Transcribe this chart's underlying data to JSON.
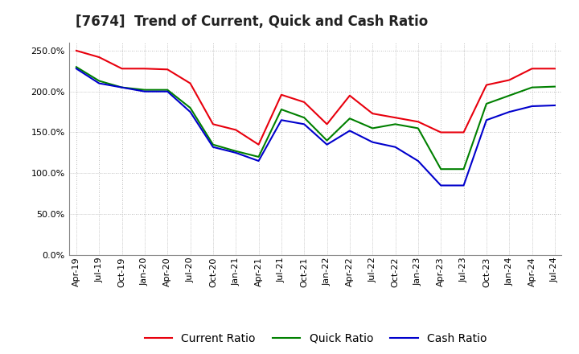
{
  "title": "[7674]  Trend of Current, Quick and Cash Ratio",
  "x_labels": [
    "Apr-19",
    "Jul-19",
    "Oct-19",
    "Jan-20",
    "Apr-20",
    "Jul-20",
    "Oct-20",
    "Jan-21",
    "Apr-21",
    "Jul-21",
    "Oct-21",
    "Jan-22",
    "Apr-22",
    "Jul-22",
    "Oct-22",
    "Jan-23",
    "Apr-23",
    "Jul-23",
    "Oct-23",
    "Jan-24",
    "Apr-24",
    "Jul-24"
  ],
  "current_ratio": [
    2.5,
    2.42,
    2.28,
    2.28,
    2.27,
    2.1,
    1.6,
    1.53,
    1.35,
    1.96,
    1.87,
    1.6,
    1.95,
    1.73,
    1.68,
    1.63,
    1.5,
    1.5,
    2.08,
    2.14,
    2.28,
    2.28
  ],
  "quick_ratio": [
    2.3,
    2.13,
    2.05,
    2.02,
    2.02,
    1.8,
    1.35,
    1.27,
    1.2,
    1.78,
    1.68,
    1.4,
    1.67,
    1.55,
    1.6,
    1.55,
    1.05,
    1.05,
    1.85,
    1.95,
    2.05,
    2.06
  ],
  "cash_ratio": [
    2.28,
    2.1,
    2.05,
    2.0,
    2.0,
    1.75,
    1.32,
    1.25,
    1.15,
    1.65,
    1.6,
    1.35,
    1.52,
    1.38,
    1.32,
    1.15,
    0.85,
    0.85,
    1.65,
    1.75,
    1.82,
    1.83
  ],
  "ylim": [
    0.0,
    2.6
  ],
  "yticks": [
    0.0,
    0.5,
    1.0,
    1.5,
    2.0,
    2.5
  ],
  "current_color": "#e8000d",
  "quick_color": "#008000",
  "cash_color": "#0000cc",
  "bg_color": "#ffffff",
  "plot_bg_color": "#ffffff",
  "grid_color": "#aaaaaa",
  "title_fontsize": 12,
  "legend_fontsize": 10,
  "tick_fontsize": 8
}
